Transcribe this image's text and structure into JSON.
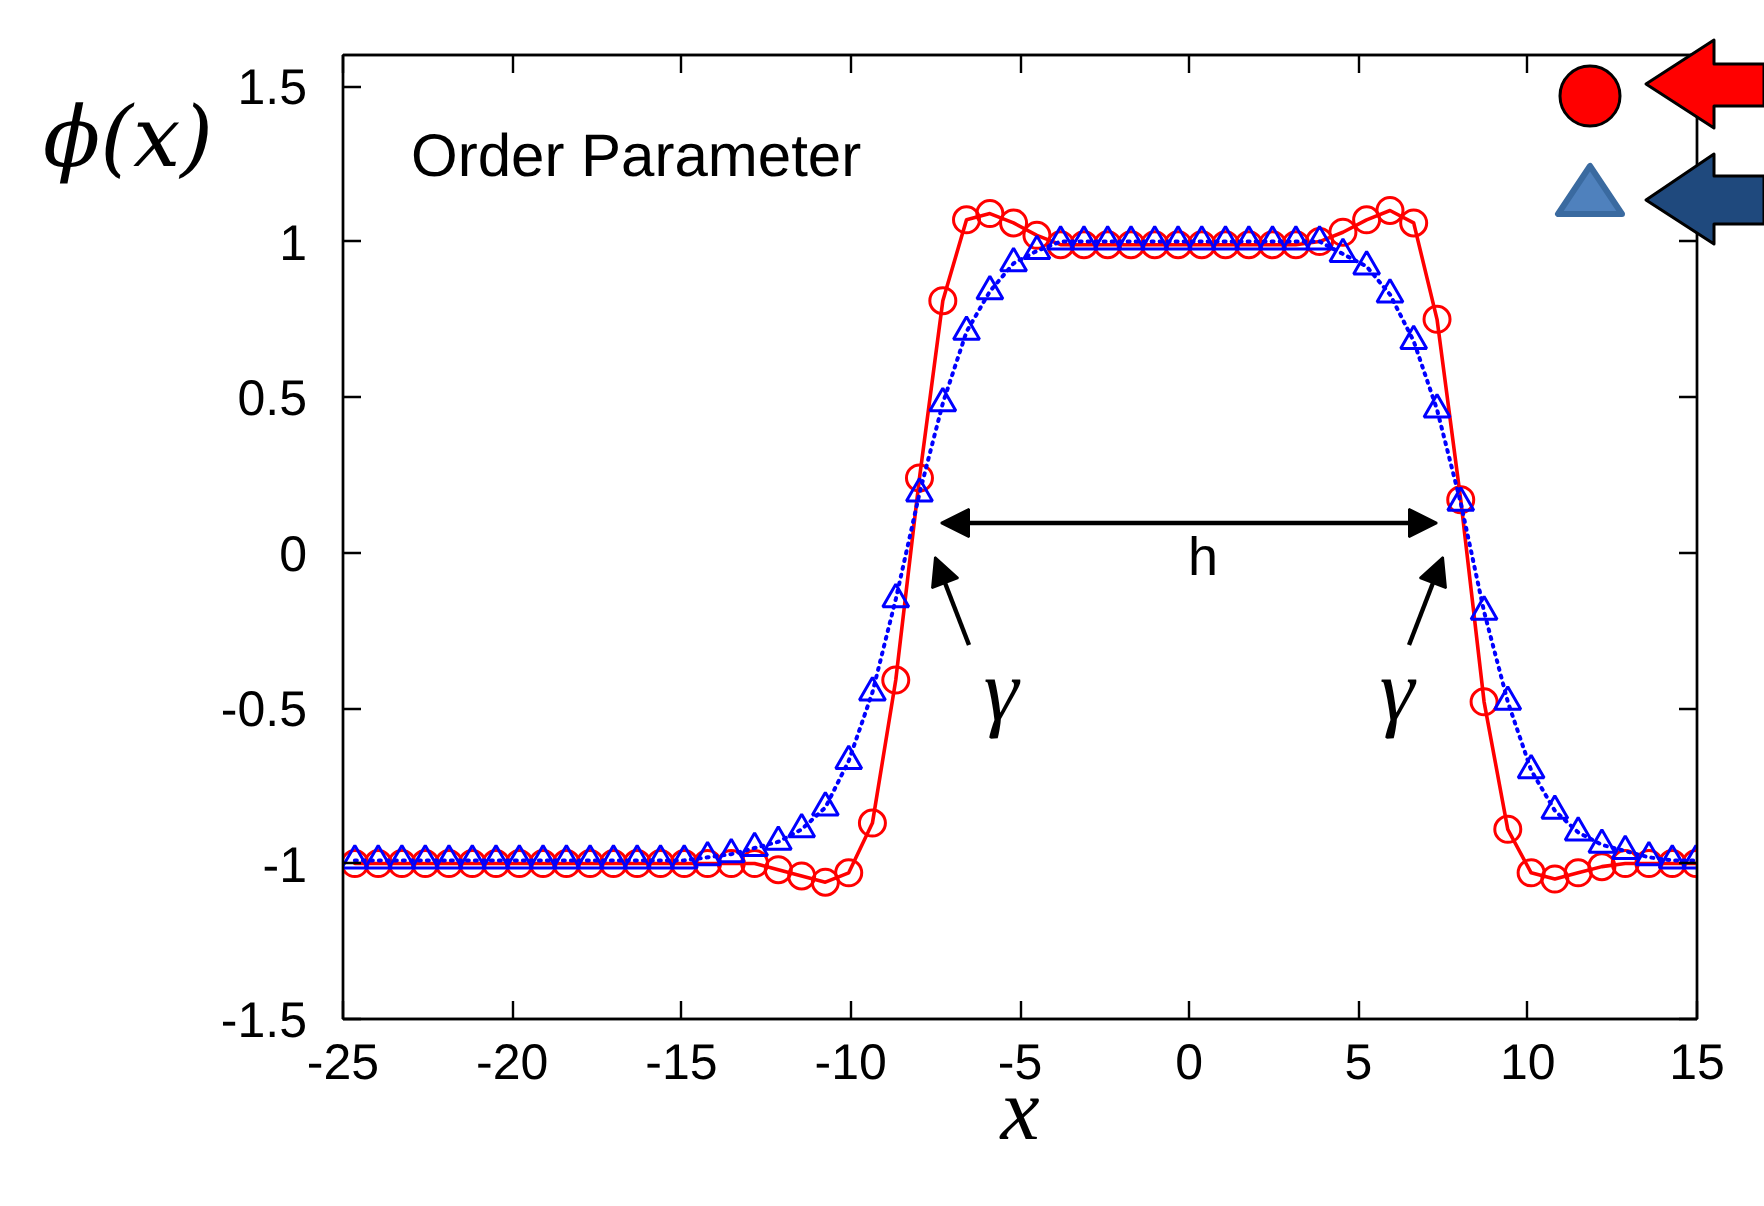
{
  "chart_data": {
    "type": "line",
    "xlabel": "x",
    "ylabel": "ϕ(x)",
    "x": [
      -24.65,
      -23.96,
      -23.26,
      -22.57,
      -21.87,
      -21.18,
      -20.48,
      -19.79,
      -19.09,
      -18.4,
      -17.7,
      -17.01,
      -16.31,
      -15.62,
      -14.92,
      -14.23,
      -13.53,
      -12.84,
      -12.14,
      -11.45,
      -10.75,
      -10.06,
      -9.36,
      -8.67,
      -7.97,
      -7.28,
      -6.58,
      -5.89,
      -5.19,
      -4.5,
      -3.8,
      -3.11,
      -2.41,
      -1.72,
      -1.02,
      -0.33,
      0.37,
      1.07,
      1.76,
      2.46,
      3.15,
      3.85,
      4.54,
      5.24,
      5.93,
      6.63,
      7.32,
      8.02,
      8.71,
      9.41,
      10.1,
      10.8,
      11.49,
      12.19,
      12.88,
      13.58,
      14.27,
      14.97
    ],
    "series": [
      {
        "color": "#ff0000",
        "marker": "circle",
        "line_style": "solid",
        "values": [
          -1.0,
          -1.0,
          -1.0,
          -1.0,
          -1.0,
          -1.0,
          -1.0,
          -1.0,
          -1.0,
          -1.0,
          -1.0,
          -1.0,
          -1.0,
          -1.0,
          -1.0,
          -1.0,
          -1.0,
          -1.0,
          -1.02,
          -1.04,
          -1.06,
          -1.03,
          -0.87,
          -0.41,
          0.24,
          0.81,
          1.07,
          1.09,
          1.06,
          1.02,
          0.99,
          0.99,
          0.99,
          0.99,
          0.99,
          0.99,
          0.99,
          0.99,
          0.99,
          0.99,
          0.99,
          1.0,
          1.03,
          1.07,
          1.1,
          1.06,
          0.75,
          0.17,
          -0.48,
          -0.89,
          -1.03,
          -1.05,
          -1.03,
          -1.01,
          -1.0,
          -1.0,
          -1.0,
          -1.0
        ]
      },
      {
        "color": "#0000ff",
        "marker": "triangle",
        "line_style": "dotted",
        "values": [
          -0.99,
          -0.99,
          -0.99,
          -0.99,
          -0.99,
          -0.99,
          -0.99,
          -0.99,
          -0.99,
          -0.99,
          -0.99,
          -0.99,
          -0.99,
          -0.99,
          -0.99,
          -0.98,
          -0.97,
          -0.95,
          -0.93,
          -0.89,
          -0.82,
          -0.67,
          -0.45,
          -0.15,
          0.19,
          0.48,
          0.71,
          0.84,
          0.93,
          0.97,
          1.0,
          1.0,
          1.0,
          1.0,
          1.0,
          1.0,
          1.0,
          1.0,
          1.0,
          1.0,
          1.0,
          1.0,
          0.96,
          0.92,
          0.83,
          0.68,
          0.46,
          0.16,
          -0.19,
          -0.48,
          -0.7,
          -0.83,
          -0.9,
          -0.94,
          -0.96,
          -0.98,
          -0.99,
          -0.99
        ]
      }
    ],
    "xlim": [
      -25,
      15
    ],
    "ylim": [
      -1.5,
      1.6
    ],
    "xticks": [
      -25,
      -20,
      -15,
      -10,
      -5,
      0,
      5,
      10,
      15
    ],
    "yticks": [
      -1.5,
      -1,
      -0.5,
      0,
      0.5,
      1,
      1.5
    ],
    "annotations": [
      "Order Parameter",
      "h",
      "γ",
      "γ"
    ]
  }
}
